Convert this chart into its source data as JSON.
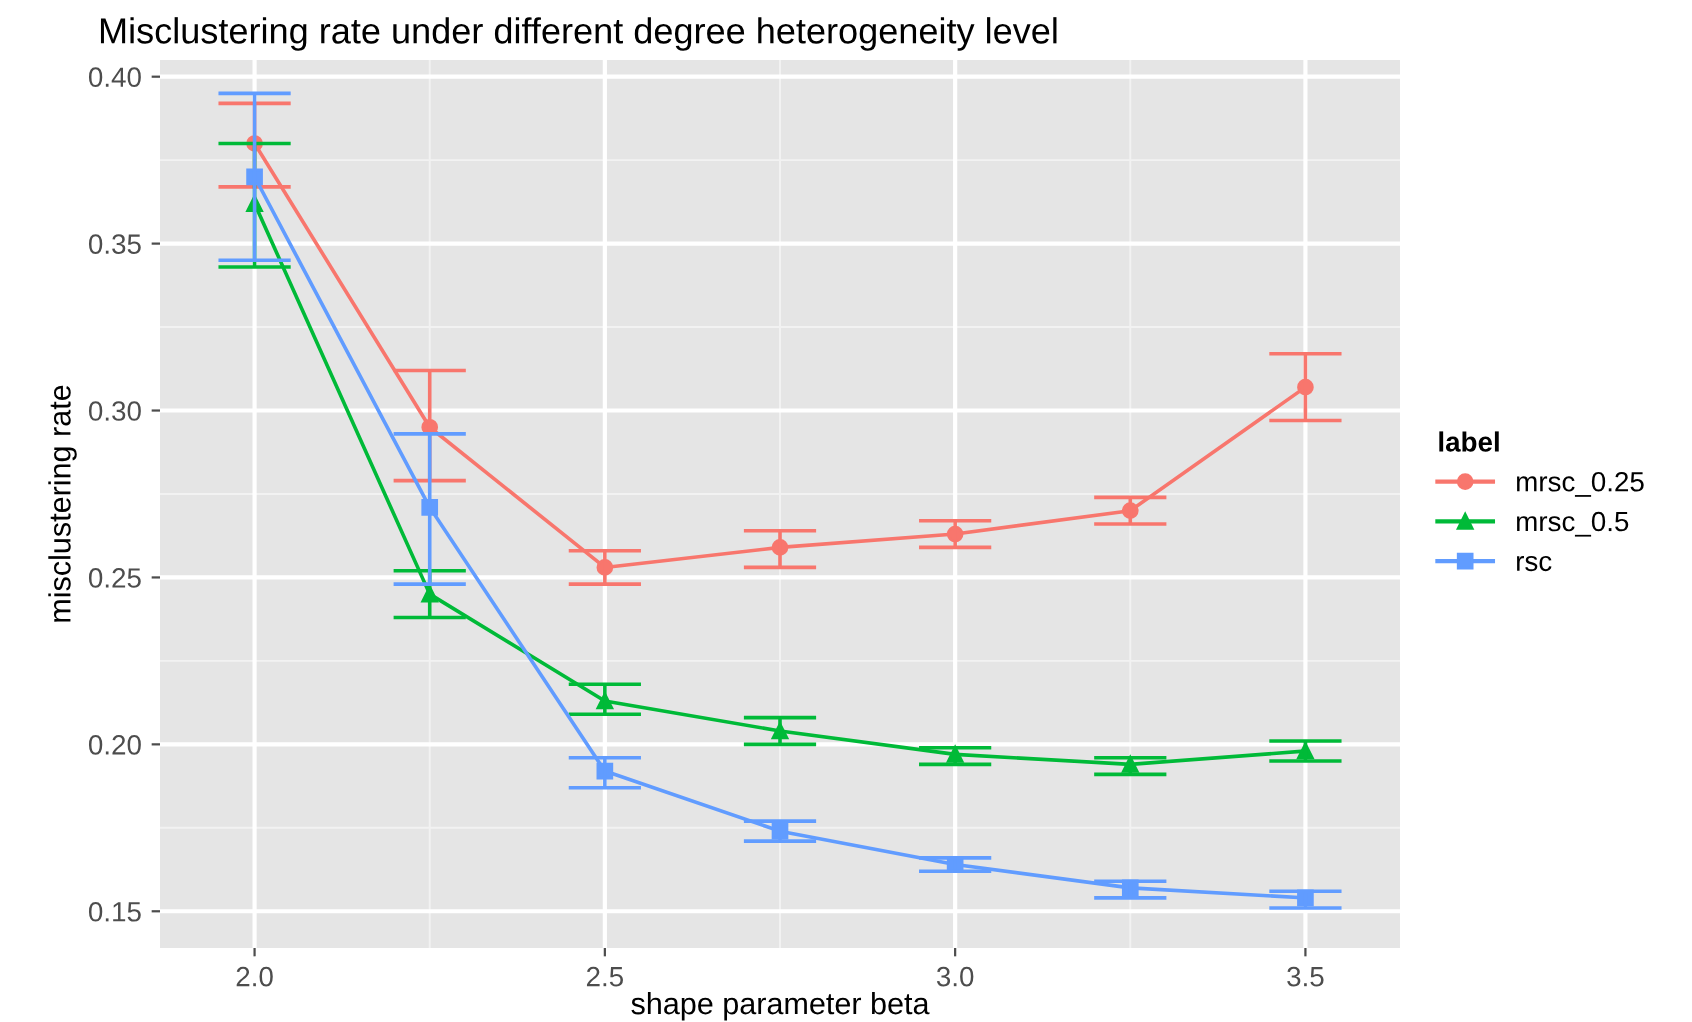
{
  "chart_data": {
    "type": "line",
    "title": "Misclustering rate under different degree heterogeneity level",
    "xlabel": "shape parameter beta",
    "ylabel": "misclustering rate",
    "legend_title": "label",
    "legend": "right",
    "grid": true,
    "x": [
      2.0,
      2.25,
      2.5,
      2.75,
      3.0,
      3.25,
      3.5
    ],
    "xlim": [
      1.865,
      3.635
    ],
    "xticks": [
      {
        "value": 2.0,
        "label": "2.0"
      },
      {
        "value": 2.5,
        "label": "2.5"
      },
      {
        "value": 3.0,
        "label": "3.0"
      },
      {
        "value": 3.5,
        "label": "3.5"
      }
    ],
    "ylim": [
      0.139,
      0.405
    ],
    "yticks": [
      {
        "value": 0.15,
        "label": "0.15"
      },
      {
        "value": 0.2,
        "label": "0.20"
      },
      {
        "value": 0.25,
        "label": "0.25"
      },
      {
        "value": 0.3,
        "label": "0.30"
      },
      {
        "value": 0.35,
        "label": "0.35"
      },
      {
        "value": 0.4,
        "label": "0.40"
      }
    ],
    "series": [
      {
        "name": "mrsc_0.25",
        "color": "#f8766d",
        "marker": "circle",
        "values": [
          0.38,
          0.295,
          0.253,
          0.259,
          0.263,
          0.27,
          0.307
        ],
        "errors": [
          [
            0.367,
            0.392
          ],
          [
            0.279,
            0.312
          ],
          [
            0.248,
            0.258
          ],
          [
            0.253,
            0.264
          ],
          [
            0.259,
            0.267
          ],
          [
            0.266,
            0.274
          ],
          [
            0.297,
            0.317
          ]
        ]
      },
      {
        "name": "mrsc_0.5",
        "color": "#00ba38",
        "marker": "triangle",
        "values": [
          0.362,
          0.245,
          0.213,
          0.204,
          0.197,
          0.194,
          0.198
        ],
        "errors": [
          [
            0.343,
            0.38
          ],
          [
            0.238,
            0.252
          ],
          [
            0.209,
            0.218
          ],
          [
            0.2,
            0.208
          ],
          [
            0.194,
            0.199
          ],
          [
            0.191,
            0.196
          ],
          [
            0.195,
            0.201
          ]
        ]
      },
      {
        "name": "rsc",
        "color": "#619cff",
        "marker": "square",
        "values": [
          0.37,
          0.271,
          0.192,
          0.174,
          0.164,
          0.157,
          0.154
        ],
        "errors": [
          [
            0.345,
            0.395
          ],
          [
            0.248,
            0.293
          ],
          [
            0.187,
            0.196
          ],
          [
            0.171,
            0.177
          ],
          [
            0.162,
            0.166
          ],
          [
            0.154,
            0.159
          ],
          [
            0.151,
            0.156
          ]
        ]
      }
    ]
  }
}
